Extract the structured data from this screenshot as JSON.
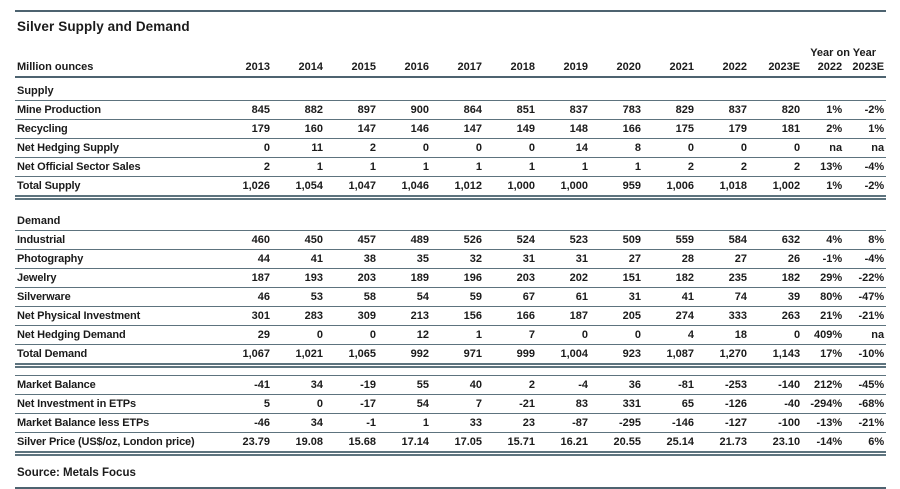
{
  "page": {
    "title": "Silver Supply and Demand",
    "source": "Source: Metals Focus"
  },
  "colors": {
    "rule": "#5d737e",
    "rule_dark": "#4d6370",
    "text": "#1b1b1b",
    "background": "#ffffff"
  },
  "table": {
    "unit_label": "Million ounces",
    "yoy_label": "Year on Year",
    "columns": [
      "2013",
      "2014",
      "2015",
      "2016",
      "2017",
      "2018",
      "2019",
      "2020",
      "2021",
      "2022",
      "2023E"
    ],
    "yoy_columns": [
      "2022",
      "2023E"
    ],
    "sections": [
      {
        "label": "Supply",
        "rows": [
          {
            "label": "Mine Production",
            "values": [
              "845",
              "882",
              "897",
              "900",
              "864",
              "851",
              "837",
              "783",
              "829",
              "837",
              "820",
              "1%",
              "-2%"
            ]
          },
          {
            "label": "Recycling",
            "values": [
              "179",
              "160",
              "147",
              "146",
              "147",
              "149",
              "148",
              "166",
              "175",
              "179",
              "181",
              "2%",
              "1%"
            ]
          },
          {
            "label": "Net Hedging Supply",
            "values": [
              "0",
              "11",
              "2",
              "0",
              "0",
              "0",
              "14",
              "8",
              "0",
              "0",
              "0",
              "na",
              "na"
            ]
          },
          {
            "label": "Net Official Sector Sales",
            "values": [
              "2",
              "1",
              "1",
              "1",
              "1",
              "1",
              "1",
              "1",
              "2",
              "2",
              "2",
              "13%",
              "-4%"
            ]
          }
        ],
        "total": {
          "label": "Total Supply",
          "values": [
            "1,026",
            "1,054",
            "1,047",
            "1,046",
            "1,012",
            "1,000",
            "1,000",
            "959",
            "1,006",
            "1,018",
            "1,002",
            "1%",
            "-2%"
          ]
        }
      },
      {
        "label": "Demand",
        "rows": [
          {
            "label": "Industrial",
            "values": [
              "460",
              "450",
              "457",
              "489",
              "526",
              "524",
              "523",
              "509",
              "559",
              "584",
              "632",
              "4%",
              "8%"
            ]
          },
          {
            "label": "Photography",
            "values": [
              "44",
              "41",
              "38",
              "35",
              "32",
              "31",
              "31",
              "27",
              "28",
              "27",
              "26",
              "-1%",
              "-4%"
            ]
          },
          {
            "label": "Jewelry",
            "values": [
              "187",
              "193",
              "203",
              "189",
              "196",
              "203",
              "202",
              "151",
              "182",
              "235",
              "182",
              "29%",
              "-22%"
            ]
          },
          {
            "label": "Silverware",
            "values": [
              "46",
              "53",
              "58",
              "54",
              "59",
              "67",
              "61",
              "31",
              "41",
              "74",
              "39",
              "80%",
              "-47%"
            ]
          },
          {
            "label": "Net Physical Investment",
            "values": [
              "301",
              "283",
              "309",
              "213",
              "156",
              "166",
              "187",
              "205",
              "274",
              "333",
              "263",
              "21%",
              "-21%"
            ]
          },
          {
            "label": "Net Hedging Demand",
            "values": [
              "29",
              "0",
              "0",
              "12",
              "1",
              "7",
              "0",
              "0",
              "4",
              "18",
              "0",
              "409%",
              "na"
            ]
          }
        ],
        "total": {
          "label": "Total Demand",
          "values": [
            "1,067",
            "1,021",
            "1,065",
            "992",
            "971",
            "999",
            "1,004",
            "923",
            "1,087",
            "1,270",
            "1,143",
            "17%",
            "-10%"
          ]
        }
      }
    ],
    "summary_rows": [
      {
        "label": "Market Balance",
        "values": [
          "-41",
          "34",
          "-19",
          "55",
          "40",
          "2",
          "-4",
          "36",
          "-81",
          "-253",
          "-140",
          "212%",
          "-45%"
        ]
      },
      {
        "label": "Net Investment in ETPs",
        "values": [
          "5",
          "0",
          "-17",
          "54",
          "7",
          "-21",
          "83",
          "331",
          "65",
          "-126",
          "-40",
          "-294%",
          "-68%"
        ]
      },
      {
        "label": "Market Balance less ETPs",
        "values": [
          "-46",
          "34",
          "-1",
          "1",
          "33",
          "23",
          "-87",
          "-295",
          "-146",
          "-127",
          "-100",
          "-13%",
          "-21%"
        ]
      },
      {
        "label": "Silver Price (US$/oz, London price)",
        "values": [
          "23.79",
          "19.08",
          "15.68",
          "17.14",
          "17.05",
          "15.71",
          "16.21",
          "20.55",
          "25.14",
          "21.73",
          "23.10",
          "-14%",
          "6%"
        ]
      }
    ]
  }
}
